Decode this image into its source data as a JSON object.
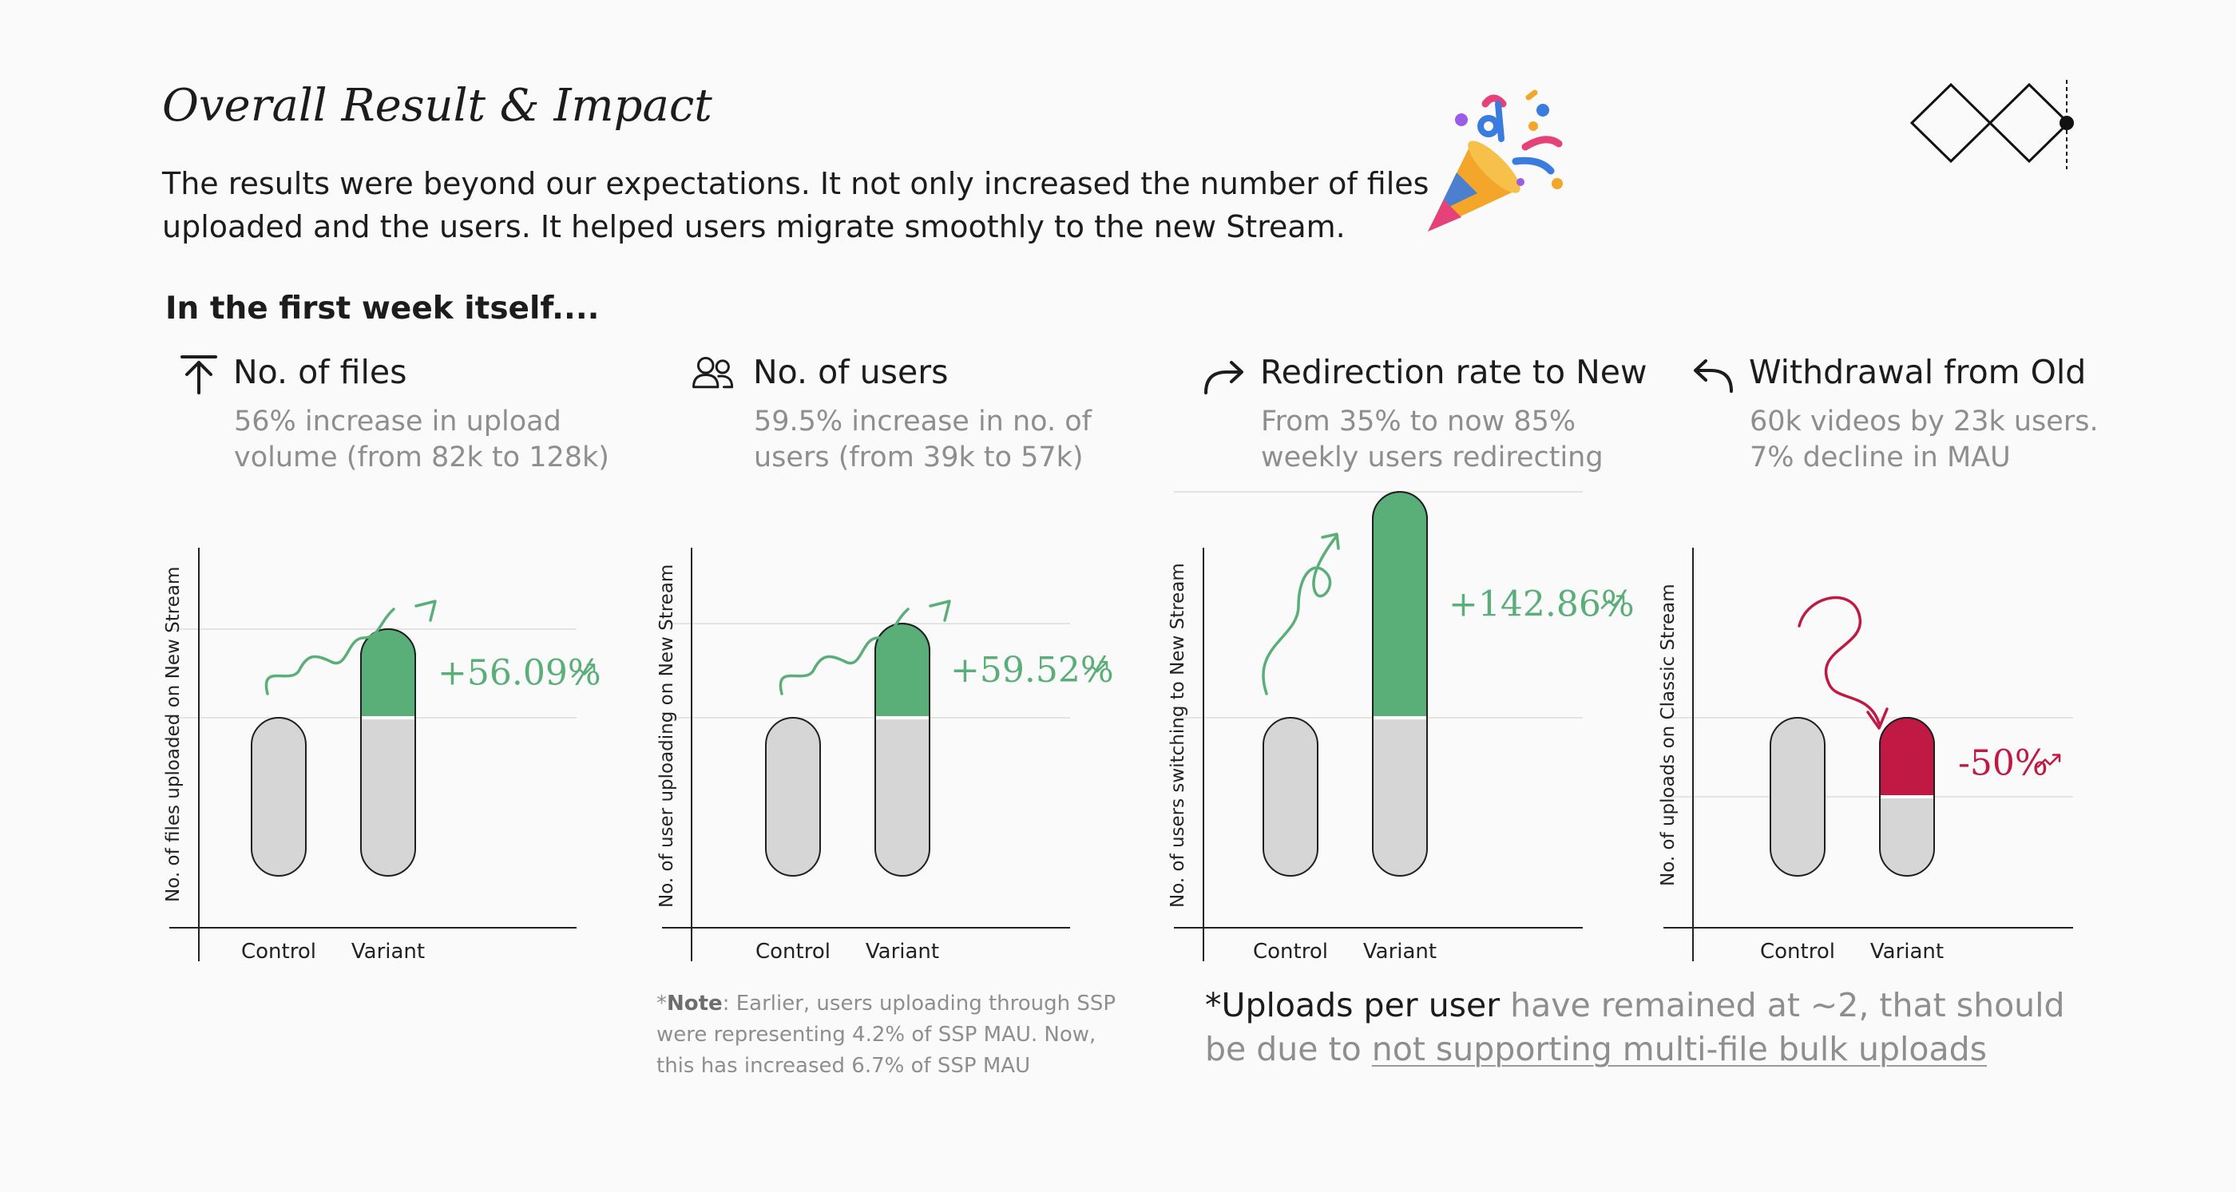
{
  "header": {
    "title": "Overall Result & Impact",
    "intro_line1": "The results were beyond our expectations. It not only increased the number of files",
    "intro_line2": "uploaded and the users. It helped users migrate smoothly to the new Stream.",
    "party_icon": "party-popper-icon",
    "logo_icon": "double-diamond-logo-icon"
  },
  "section_heading": "In the first week itself....",
  "metrics": [
    {
      "icon": "upload-arrow-icon",
      "heading": "No. of files",
      "desc_line1": "56% increase in upload",
      "desc_line2": "volume (from 82k to 128k)"
    },
    {
      "icon": "users-icon",
      "heading": "No. of users",
      "desc_line1": "59.5% increase in no. of",
      "desc_line2": "users (from 39k to 57k)"
    },
    {
      "icon": "redirect-arrow-icon",
      "heading": "Redirection rate to New",
      "desc_line1": "From 35% to now 85%",
      "desc_line2": "weekly users redirecting"
    },
    {
      "icon": "return-arrow-icon",
      "heading": "Withdrawal from Old",
      "desc_line1": "60k videos by 23k users.",
      "desc_line2": "7% decline in MAU"
    }
  ],
  "colors": {
    "increase": "#5aae78",
    "decrease": "#c01a44",
    "bar_base": "#d6d6d6",
    "gridline": "#dcdcdc"
  },
  "chart_data": [
    {
      "type": "bar",
      "ylabel": "No. of files uploaded on New Stream",
      "categories": [
        "Control",
        "Variant"
      ],
      "values": [
        1,
        1.5609
      ],
      "change_label": "+56.09%",
      "direction": "increase",
      "grid": true
    },
    {
      "type": "bar",
      "ylabel": "No. of user uploading on New Stream",
      "categories": [
        "Control",
        "Variant"
      ],
      "values": [
        1,
        1.5952
      ],
      "change_label": "+59.52%",
      "direction": "increase",
      "grid": true
    },
    {
      "type": "bar",
      "ylabel": "No. of users switching to New Stream",
      "categories": [
        "Control",
        "Variant"
      ],
      "values": [
        1,
        2.4286
      ],
      "change_label": "+142.86%",
      "direction": "increase",
      "grid": true
    },
    {
      "type": "bar",
      "ylabel": "No. of uploads on Classic Stream",
      "categories": [
        "Control",
        "Variant"
      ],
      "values": [
        1,
        0.5
      ],
      "change_label": "-50%",
      "direction": "decrease",
      "grid": true
    }
  ],
  "note": {
    "prefix": "*",
    "bold": "Note",
    "line1_rest": ": Earlier, users uploading through SSP",
    "line2": "were representing 4.2% of SSP MAU. Now,",
    "line3": "this has increased 6.7% of SSP MAU"
  },
  "footnote": {
    "bold_part": "*Uploads per user",
    "rest_line1": " have remained at ~2, that should",
    "line2_prefix": "be due to ",
    "line2_link": "not supporting multi-file bulk uploads"
  }
}
